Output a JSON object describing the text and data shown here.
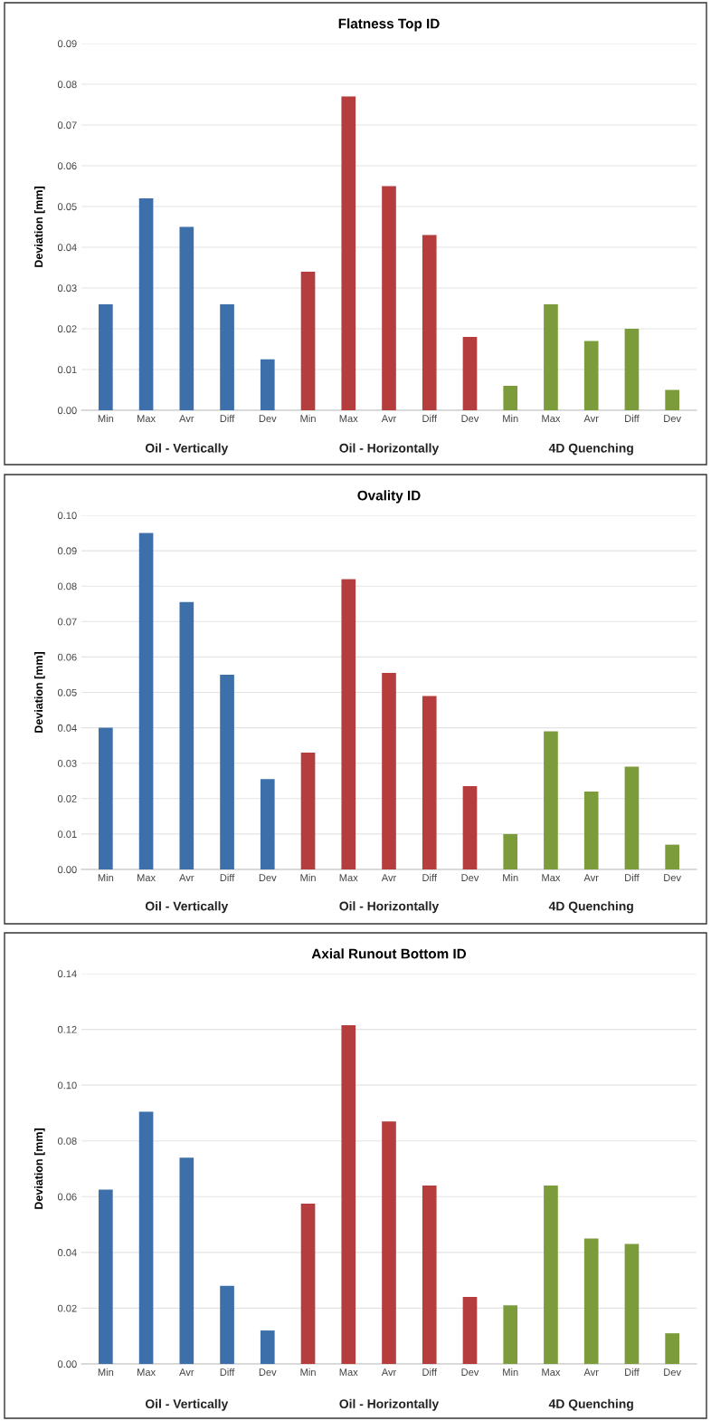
{
  "chart_data": [
    {
      "type": "bar",
      "title": "Flatness Top ID",
      "ylabel": "Deviation [mm]",
      "grid": "y",
      "categories": [
        "Min",
        "Max",
        "Avr",
        "Diff",
        "Dev",
        "Min",
        "Max",
        "Avr",
        "Diff",
        "Dev",
        "Min",
        "Max",
        "Avr",
        "Diff",
        "Dev"
      ],
      "ylim": [
        0,
        0.09
      ],
      "yticks": [
        {
          "value": 0,
          "label": "0.00"
        },
        {
          "value": 0.01,
          "label": "0.01"
        },
        {
          "value": 0.02,
          "label": "0.02"
        },
        {
          "value": 0.03,
          "label": "0.03"
        },
        {
          "value": 0.04,
          "label": "0.04"
        },
        {
          "value": 0.05,
          "label": "0.05"
        },
        {
          "value": 0.06,
          "label": "0.06"
        },
        {
          "value": 0.07,
          "label": "0.07"
        },
        {
          "value": 0.08,
          "label": "0.08"
        },
        {
          "value": 0.09,
          "label": "0.09"
        }
      ],
      "series": [
        {
          "name": "Oil - Vertically",
          "color": "#3d70aa",
          "values": [
            0.026,
            0.052,
            0.045,
            0.026,
            0.0125,
            null,
            null,
            null,
            null,
            null,
            null,
            null,
            null,
            null,
            null
          ]
        },
        {
          "name": "Oil - Horizontally",
          "color": "#b53d3d",
          "values": [
            null,
            null,
            null,
            null,
            null,
            0.034,
            0.077,
            0.055,
            0.043,
            0.018,
            null,
            null,
            null,
            null,
            null
          ]
        },
        {
          "name": "4D Quenching",
          "color": "#7c9c3c",
          "values": [
            null,
            null,
            null,
            null,
            null,
            null,
            null,
            null,
            null,
            null,
            0.006,
            0.026,
            0.017,
            0.02,
            0.005
          ]
        }
      ]
    },
    {
      "type": "bar",
      "title": "Ovality ID",
      "ylabel": "Deviation [mm]",
      "grid": "y",
      "categories": [
        "Min",
        "Max",
        "Avr",
        "Diff",
        "Dev",
        "Min",
        "Max",
        "Avr",
        "Diff",
        "Dev",
        "Min",
        "Max",
        "Avr",
        "Diff",
        "Dev"
      ],
      "ylim": [
        0,
        0.1
      ],
      "yticks": [
        {
          "value": 0,
          "label": "0.00"
        },
        {
          "value": 0.01,
          "label": "0.01"
        },
        {
          "value": 0.02,
          "label": "0.02"
        },
        {
          "value": 0.03,
          "label": "0.03"
        },
        {
          "value": 0.04,
          "label": "0.04"
        },
        {
          "value": 0.05,
          "label": "0.05"
        },
        {
          "value": 0.06,
          "label": "0.06"
        },
        {
          "value": 0.07,
          "label": "0.07"
        },
        {
          "value": 0.08,
          "label": "0.08"
        },
        {
          "value": 0.09,
          "label": "0.09"
        },
        {
          "value": 0.1,
          "label": "0.10"
        }
      ],
      "series": [
        {
          "name": "Oil - Vertically",
          "color": "#3d70aa",
          "values": [
            0.04,
            0.095,
            0.0755,
            0.055,
            0.0255,
            null,
            null,
            null,
            null,
            null,
            null,
            null,
            null,
            null,
            null
          ]
        },
        {
          "name": "Oil - Horizontally",
          "color": "#b53d3d",
          "values": [
            null,
            null,
            null,
            null,
            null,
            0.033,
            0.082,
            0.0555,
            0.049,
            0.0235,
            null,
            null,
            null,
            null,
            null
          ]
        },
        {
          "name": "4D Quenching",
          "color": "#7c9c3c",
          "values": [
            null,
            null,
            null,
            null,
            null,
            null,
            null,
            null,
            null,
            null,
            0.01,
            0.039,
            0.022,
            0.029,
            0.007
          ]
        }
      ]
    },
    {
      "type": "bar",
      "title": "Axial Runout Bottom ID",
      "ylabel": "Deviation [mm]",
      "grid": "y",
      "categories": [
        "Min",
        "Max",
        "Avr",
        "Diff",
        "Dev",
        "Min",
        "Max",
        "Avr",
        "Diff",
        "Dev",
        "Min",
        "Max",
        "Avr",
        "Diff",
        "Dev"
      ],
      "ylim": [
        0,
        0.14
      ],
      "yticks": [
        {
          "value": 0,
          "label": "0.00"
        },
        {
          "value": 0.02,
          "label": "0.02"
        },
        {
          "value": 0.04,
          "label": "0.04"
        },
        {
          "value": 0.06,
          "label": "0.06"
        },
        {
          "value": 0.08,
          "label": "0.08"
        },
        {
          "value": 0.1,
          "label": "0.10"
        },
        {
          "value": 0.12,
          "label": "0.12"
        },
        {
          "value": 0.14,
          "label": "0.14"
        }
      ],
      "series": [
        {
          "name": "Oil - Vertically",
          "color": "#3d70aa",
          "values": [
            0.0625,
            0.0905,
            0.074,
            0.028,
            0.012,
            null,
            null,
            null,
            null,
            null,
            null,
            null,
            null,
            null,
            null
          ]
        },
        {
          "name": "Oil - Horizontally",
          "color": "#b53d3d",
          "values": [
            null,
            null,
            null,
            null,
            null,
            0.0575,
            0.1215,
            0.087,
            0.064,
            0.024,
            null,
            null,
            null,
            null,
            null
          ]
        },
        {
          "name": "4D Quenching",
          "color": "#7c9c3c",
          "values": [
            null,
            null,
            null,
            null,
            null,
            null,
            null,
            null,
            null,
            null,
            0.021,
            0.064,
            0.045,
            0.043,
            0.011
          ]
        }
      ]
    }
  ]
}
